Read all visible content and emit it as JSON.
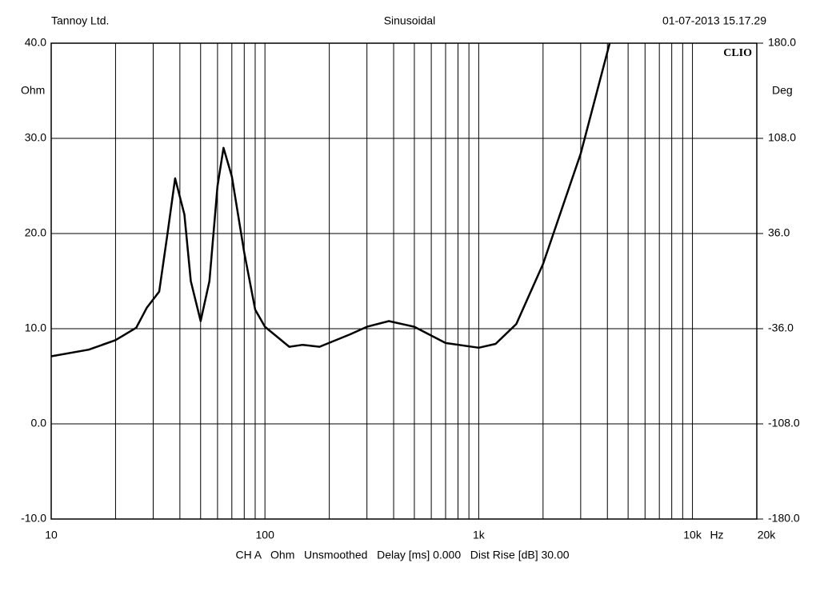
{
  "chart_data": {
    "type": "line",
    "header_left": "Tannoy Ltd.",
    "title": "Sinusoidal",
    "header_right": "01-07-2013 15.17.29",
    "brand": "CLIO",
    "footer": "CH A   Ohm   Unsmoothed   Delay [ms] 0.000   Dist Rise [dB] 30.00",
    "y_unit": "Ohm",
    "y2_unit": "Deg",
    "x_unit": "Hz",
    "xscale": "log",
    "grid": true,
    "color": "#000000",
    "xlim": [
      10,
      20000
    ],
    "xticks": [
      10,
      100,
      {
        "value": 1000,
        "label": "1k"
      },
      {
        "value": 10000,
        "label": "10k"
      },
      {
        "value": 20000,
        "label": "20k"
      }
    ],
    "xgrid": [
      20,
      30,
      40,
      50,
      60,
      70,
      80,
      90,
      200,
      300,
      400,
      500,
      600,
      700,
      800,
      900,
      2000,
      3000,
      4000,
      5000,
      6000,
      7000,
      8000,
      9000
    ],
    "ylim": [
      -10,
      40
    ],
    "yticks": [
      {
        "value": 40,
        "label": "40.0"
      },
      {
        "value": 30,
        "label": "30.0"
      },
      {
        "value": 20,
        "label": "20.0"
      },
      {
        "value": 10,
        "label": "10.0"
      },
      {
        "value": 0,
        "label": "0.0"
      },
      {
        "value": -10,
        "label": "-10.0"
      }
    ],
    "y2lim": [
      -180,
      180
    ],
    "y2ticks": [
      {
        "value": 180,
        "label": "180.0"
      },
      {
        "value": 108,
        "label": "108.0"
      },
      {
        "value": 36,
        "label": "36.0"
      },
      {
        "value": -36,
        "label": "-36.0"
      },
      {
        "value": -108,
        "label": "-108.0"
      },
      {
        "value": -180,
        "label": "-180.0"
      }
    ],
    "x": [
      10,
      15,
      20,
      25,
      28,
      32,
      35,
      38,
      42,
      45,
      50,
      55,
      60,
      64,
      70,
      80,
      90,
      100,
      130,
      150,
      180,
      250,
      300,
      380,
      500,
      700,
      1000,
      1200,
      1500,
      2000,
      3000,
      4100
    ],
    "values": [
      7.1,
      7.8,
      8.8,
      10.1,
      12.2,
      13.9,
      20,
      25.8,
      22,
      15,
      10.8,
      15,
      25,
      29,
      26,
      18,
      12,
      10.2,
      8.1,
      8.3,
      8.1,
      9.4,
      10.2,
      10.8,
      10.2,
      8.5,
      8.0,
      8.4,
      10.5,
      16.8,
      28.4,
      40
    ]
  }
}
